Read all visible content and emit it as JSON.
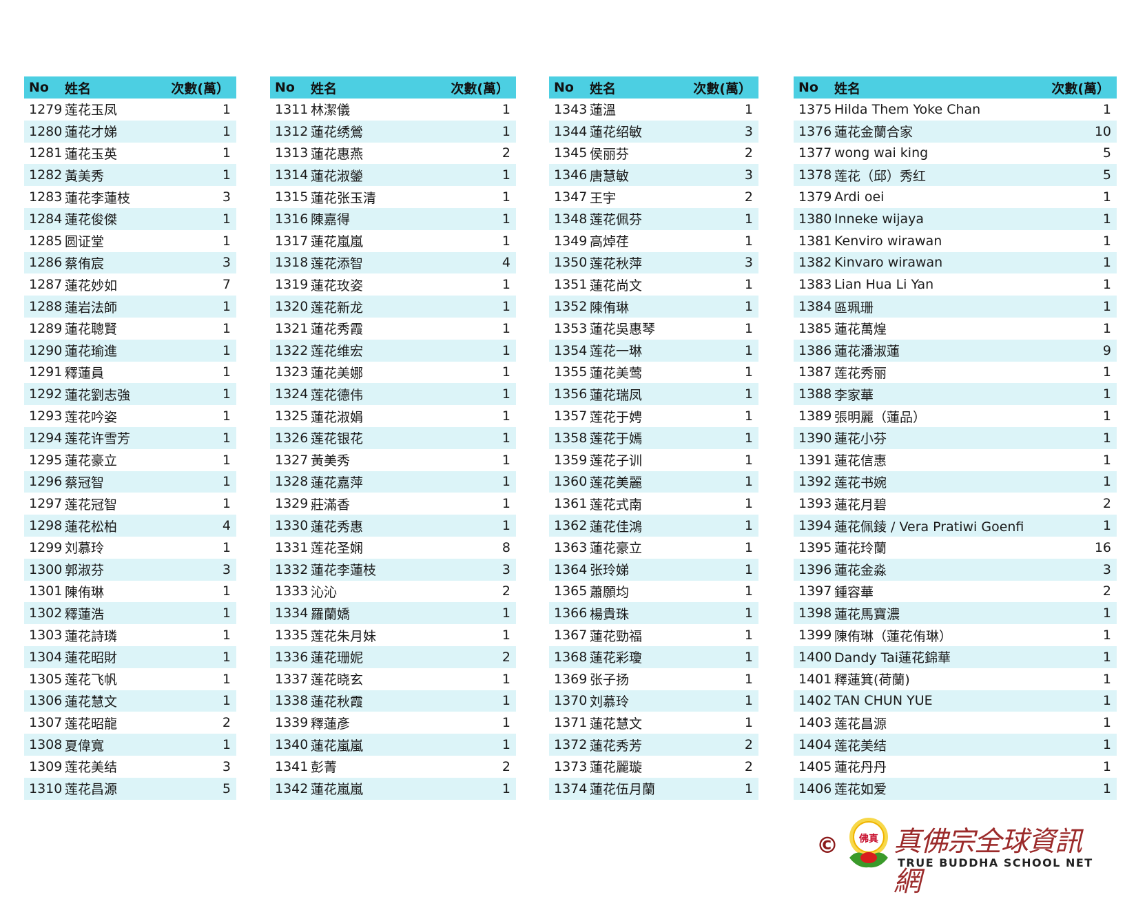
{
  "headers": {
    "no": "No",
    "name": "姓名",
    "count": "次數(萬）"
  },
  "colors": {
    "header_bg": "#4ccfe2",
    "alt_row_bg": "#dcf4f8",
    "logo_red": "#9b2a2a"
  },
  "tables": [
    [
      [
        "1279",
        "莲花玉凤",
        "1"
      ],
      [
        "1280",
        "蓮花才娣",
        "1"
      ],
      [
        "1281",
        "蓮花玉英",
        "1"
      ],
      [
        "1282",
        "黃美秀",
        "1"
      ],
      [
        "1283",
        "蓮花李蓮枝",
        "3"
      ],
      [
        "1284",
        "蓮花俊傑",
        "1"
      ],
      [
        "1285",
        "圆证堂",
        "1"
      ],
      [
        "1286",
        "蔡侑宸",
        "3"
      ],
      [
        "1287",
        "蓮花妙如",
        "7"
      ],
      [
        "1288",
        "蓮岩法師",
        "1"
      ],
      [
        "1289",
        "蓮花聰賢",
        "1"
      ],
      [
        "1290",
        "蓮花瑜進",
        "1"
      ],
      [
        "1291",
        "釋蓮員",
        "1"
      ],
      [
        "1292",
        "蓮花劉志強",
        "1"
      ],
      [
        "1293",
        "莲花吟姿",
        "1"
      ],
      [
        "1294",
        "莲花许雪芳",
        "1"
      ],
      [
        "1295",
        "蓮花豪立",
        "1"
      ],
      [
        "1296",
        "蔡冠智",
        "1"
      ],
      [
        "1297",
        "莲花冠智",
        "1"
      ],
      [
        "1298",
        "蓮花松柏",
        "4"
      ],
      [
        "1299",
        "刘慕玲",
        "1"
      ],
      [
        "1300",
        "郭淑芬",
        "3"
      ],
      [
        "1301",
        "陳侑琳",
        "1"
      ],
      [
        "1302",
        "釋蓮浩",
        "1"
      ],
      [
        "1303",
        "蓮花詩璘",
        "1"
      ],
      [
        "1304",
        "蓮花昭財",
        "1"
      ],
      [
        "1305",
        "莲花飞帆",
        "1"
      ],
      [
        "1306",
        "蓮花慧文",
        "1"
      ],
      [
        "1307",
        "莲花昭龍",
        "2"
      ],
      [
        "1308",
        "夏偉寬",
        "1"
      ],
      [
        "1309",
        "莲花美结",
        "3"
      ],
      [
        "1310",
        "莲花昌源",
        "5"
      ]
    ],
    [
      [
        "1311",
        "林潔儀",
        "1"
      ],
      [
        "1312",
        "蓮花绣鶯",
        "1"
      ],
      [
        "1313",
        "蓮花惠燕",
        "2"
      ],
      [
        "1314",
        "蓮花淑鎣",
        "1"
      ],
      [
        "1315",
        "蓮花张玉清",
        "1"
      ],
      [
        "1316",
        "陳嘉得",
        "1"
      ],
      [
        "1317",
        "蓮花嵐嵐",
        "1"
      ],
      [
        "1318",
        "莲花添智",
        "4"
      ],
      [
        "1319",
        "蓮花玫姿",
        "1"
      ],
      [
        "1320",
        "莲花新龙",
        "1"
      ],
      [
        "1321",
        "蓮花秀霞",
        "1"
      ],
      [
        "1322",
        "莲花维宏",
        "1"
      ],
      [
        "1323",
        "蓮花美娜",
        "1"
      ],
      [
        "1324",
        "莲花德伟",
        "1"
      ],
      [
        "1325",
        "蓮花淑娟",
        "1"
      ],
      [
        "1326",
        "莲花银花",
        "1"
      ],
      [
        "1327",
        "黃美秀",
        "1"
      ],
      [
        "1328",
        "蓮花嘉萍",
        "1"
      ],
      [
        "1329",
        "莊滿香",
        "1"
      ],
      [
        "1330",
        "蓮花秀惠",
        "1"
      ],
      [
        "1331",
        "莲花圣娴",
        "8"
      ],
      [
        "1332",
        "蓮花李蓮枝",
        "3"
      ],
      [
        "1333",
        "沁沁",
        "2"
      ],
      [
        "1334",
        "羅蘭嬌",
        "1"
      ],
      [
        "1335",
        "莲花朱月妹",
        "1"
      ],
      [
        "1336",
        "蓮花珊妮",
        "2"
      ],
      [
        "1337",
        "莲花晓玄",
        "1"
      ],
      [
        "1338",
        "蓮花秋霞",
        "1"
      ],
      [
        "1339",
        "釋蓮彥",
        "1"
      ],
      [
        "1340",
        "蓮花嵐嵐",
        "1"
      ],
      [
        "1341",
        "彭菁",
        "2"
      ],
      [
        "1342",
        "蓮花嵐嵐",
        "1"
      ]
    ],
    [
      [
        "1343",
        "蓮溫",
        "1"
      ],
      [
        "1344",
        "蓮花绍敏",
        "3"
      ],
      [
        "1345",
        "侯丽芬",
        "2"
      ],
      [
        "1346",
        "唐慧敏",
        "3"
      ],
      [
        "1347",
        "王宇",
        "2"
      ],
      [
        "1348",
        "莲花佩芬",
        "1"
      ],
      [
        "1349",
        "高焯荏",
        "1"
      ],
      [
        "1350",
        "莲花秋萍",
        "3"
      ],
      [
        "1351",
        "蓮花尚文",
        "1"
      ],
      [
        "1352",
        "陳侑琳",
        "1"
      ],
      [
        "1353",
        "蓮花吳惠琴",
        "1"
      ],
      [
        "1354",
        "莲花一琳",
        "1"
      ],
      [
        "1355",
        "蓮花美莺",
        "1"
      ],
      [
        "1356",
        "蓮花瑞凤",
        "1"
      ],
      [
        "1357",
        "莲花于娉",
        "1"
      ],
      [
        "1358",
        "莲花于嫣",
        "1"
      ],
      [
        "1359",
        "莲花子训",
        "1"
      ],
      [
        "1360",
        "莲花美麗",
        "1"
      ],
      [
        "1361",
        "莲花式南",
        "1"
      ],
      [
        "1362",
        "蓮花佳鴻",
        "1"
      ],
      [
        "1363",
        "蓮花豪立",
        "1"
      ],
      [
        "1364",
        "张玲娣",
        "1"
      ],
      [
        "1365",
        "蕭願均",
        "1"
      ],
      [
        "1366",
        "楊貴珠",
        "1"
      ],
      [
        "1367",
        "蓮花勁福",
        "1"
      ],
      [
        "1368",
        "蓮花彩瓊",
        "1"
      ],
      [
        "1369",
        "张子扬",
        "1"
      ],
      [
        "1370",
        "刘慕玲",
        "1"
      ],
      [
        "1371",
        "蓮花慧文",
        "1"
      ],
      [
        "1372",
        "蓮花秀芳",
        "2"
      ],
      [
        "1373",
        "蓮花麗璇",
        "2"
      ],
      [
        "1374",
        "蓮花伍月蘭",
        "1"
      ]
    ],
    [
      [
        "1375",
        "Hilda Them Yoke Chan",
        "1"
      ],
      [
        "1376",
        "蓮花金蘭合家",
        "10"
      ],
      [
        "1377",
        "wong wai king",
        "5"
      ],
      [
        "1378",
        "莲花（邱）秀红",
        "5"
      ],
      [
        "1379",
        "Ardi oei",
        "1"
      ],
      [
        "1380",
        "Inneke wijaya",
        "1"
      ],
      [
        "1381",
        "Kenviro wirawan",
        "1"
      ],
      [
        "1382",
        "Kinvaro wirawan",
        "1"
      ],
      [
        "1383",
        "Lian Hua Li Yan",
        "1"
      ],
      [
        "1384",
        "區珮珊",
        "1"
      ],
      [
        "1385",
        "蓮花萬煌",
        "1"
      ],
      [
        "1386",
        "蓮花潘淑蓮",
        "9"
      ],
      [
        "1387",
        "莲花秀丽",
        "1"
      ],
      [
        "1388",
        "李家華",
        "1"
      ],
      [
        "1389",
        "張明麗（蓮品）",
        "1"
      ],
      [
        "1390",
        "蓮花小芬",
        "1"
      ],
      [
        "1391",
        "蓮花信惠",
        "1"
      ],
      [
        "1392",
        "莲花书婉",
        "1"
      ],
      [
        "1393",
        "蓮花月碧",
        "2"
      ],
      [
        "1394",
        "蓮花佩錂 / Vera Pratiwi Goenfi",
        "1"
      ],
      [
        "1395",
        "蓮花玲蘭",
        "16"
      ],
      [
        "1396",
        "蓮花金淼",
        "3"
      ],
      [
        "1397",
        "鍾容華",
        "2"
      ],
      [
        "1398",
        "蓮花馬寶濃",
        "1"
      ],
      [
        "1399",
        "陳侑琳（蓮花侑琳）",
        "1"
      ],
      [
        "1400",
        "Dandy Tai蓮花錦華",
        "1"
      ],
      [
        "1401",
        "釋蓮箕(荷蘭)",
        "1"
      ],
      [
        "1402",
        "TAN CHUN YUE",
        "1"
      ],
      [
        "1403",
        "莲花昌源",
        "1"
      ],
      [
        "1404",
        "莲花美结",
        "1"
      ],
      [
        "1405",
        "蓮花丹丹",
        "1"
      ],
      [
        "1406",
        "莲花如爱",
        "1"
      ]
    ]
  ],
  "logo": {
    "copyright": "©",
    "emblem_text": "真佛宗",
    "chinese": "真佛宗全球資訊網",
    "english": "TRUE BUDDHA SCHOOL NET"
  }
}
